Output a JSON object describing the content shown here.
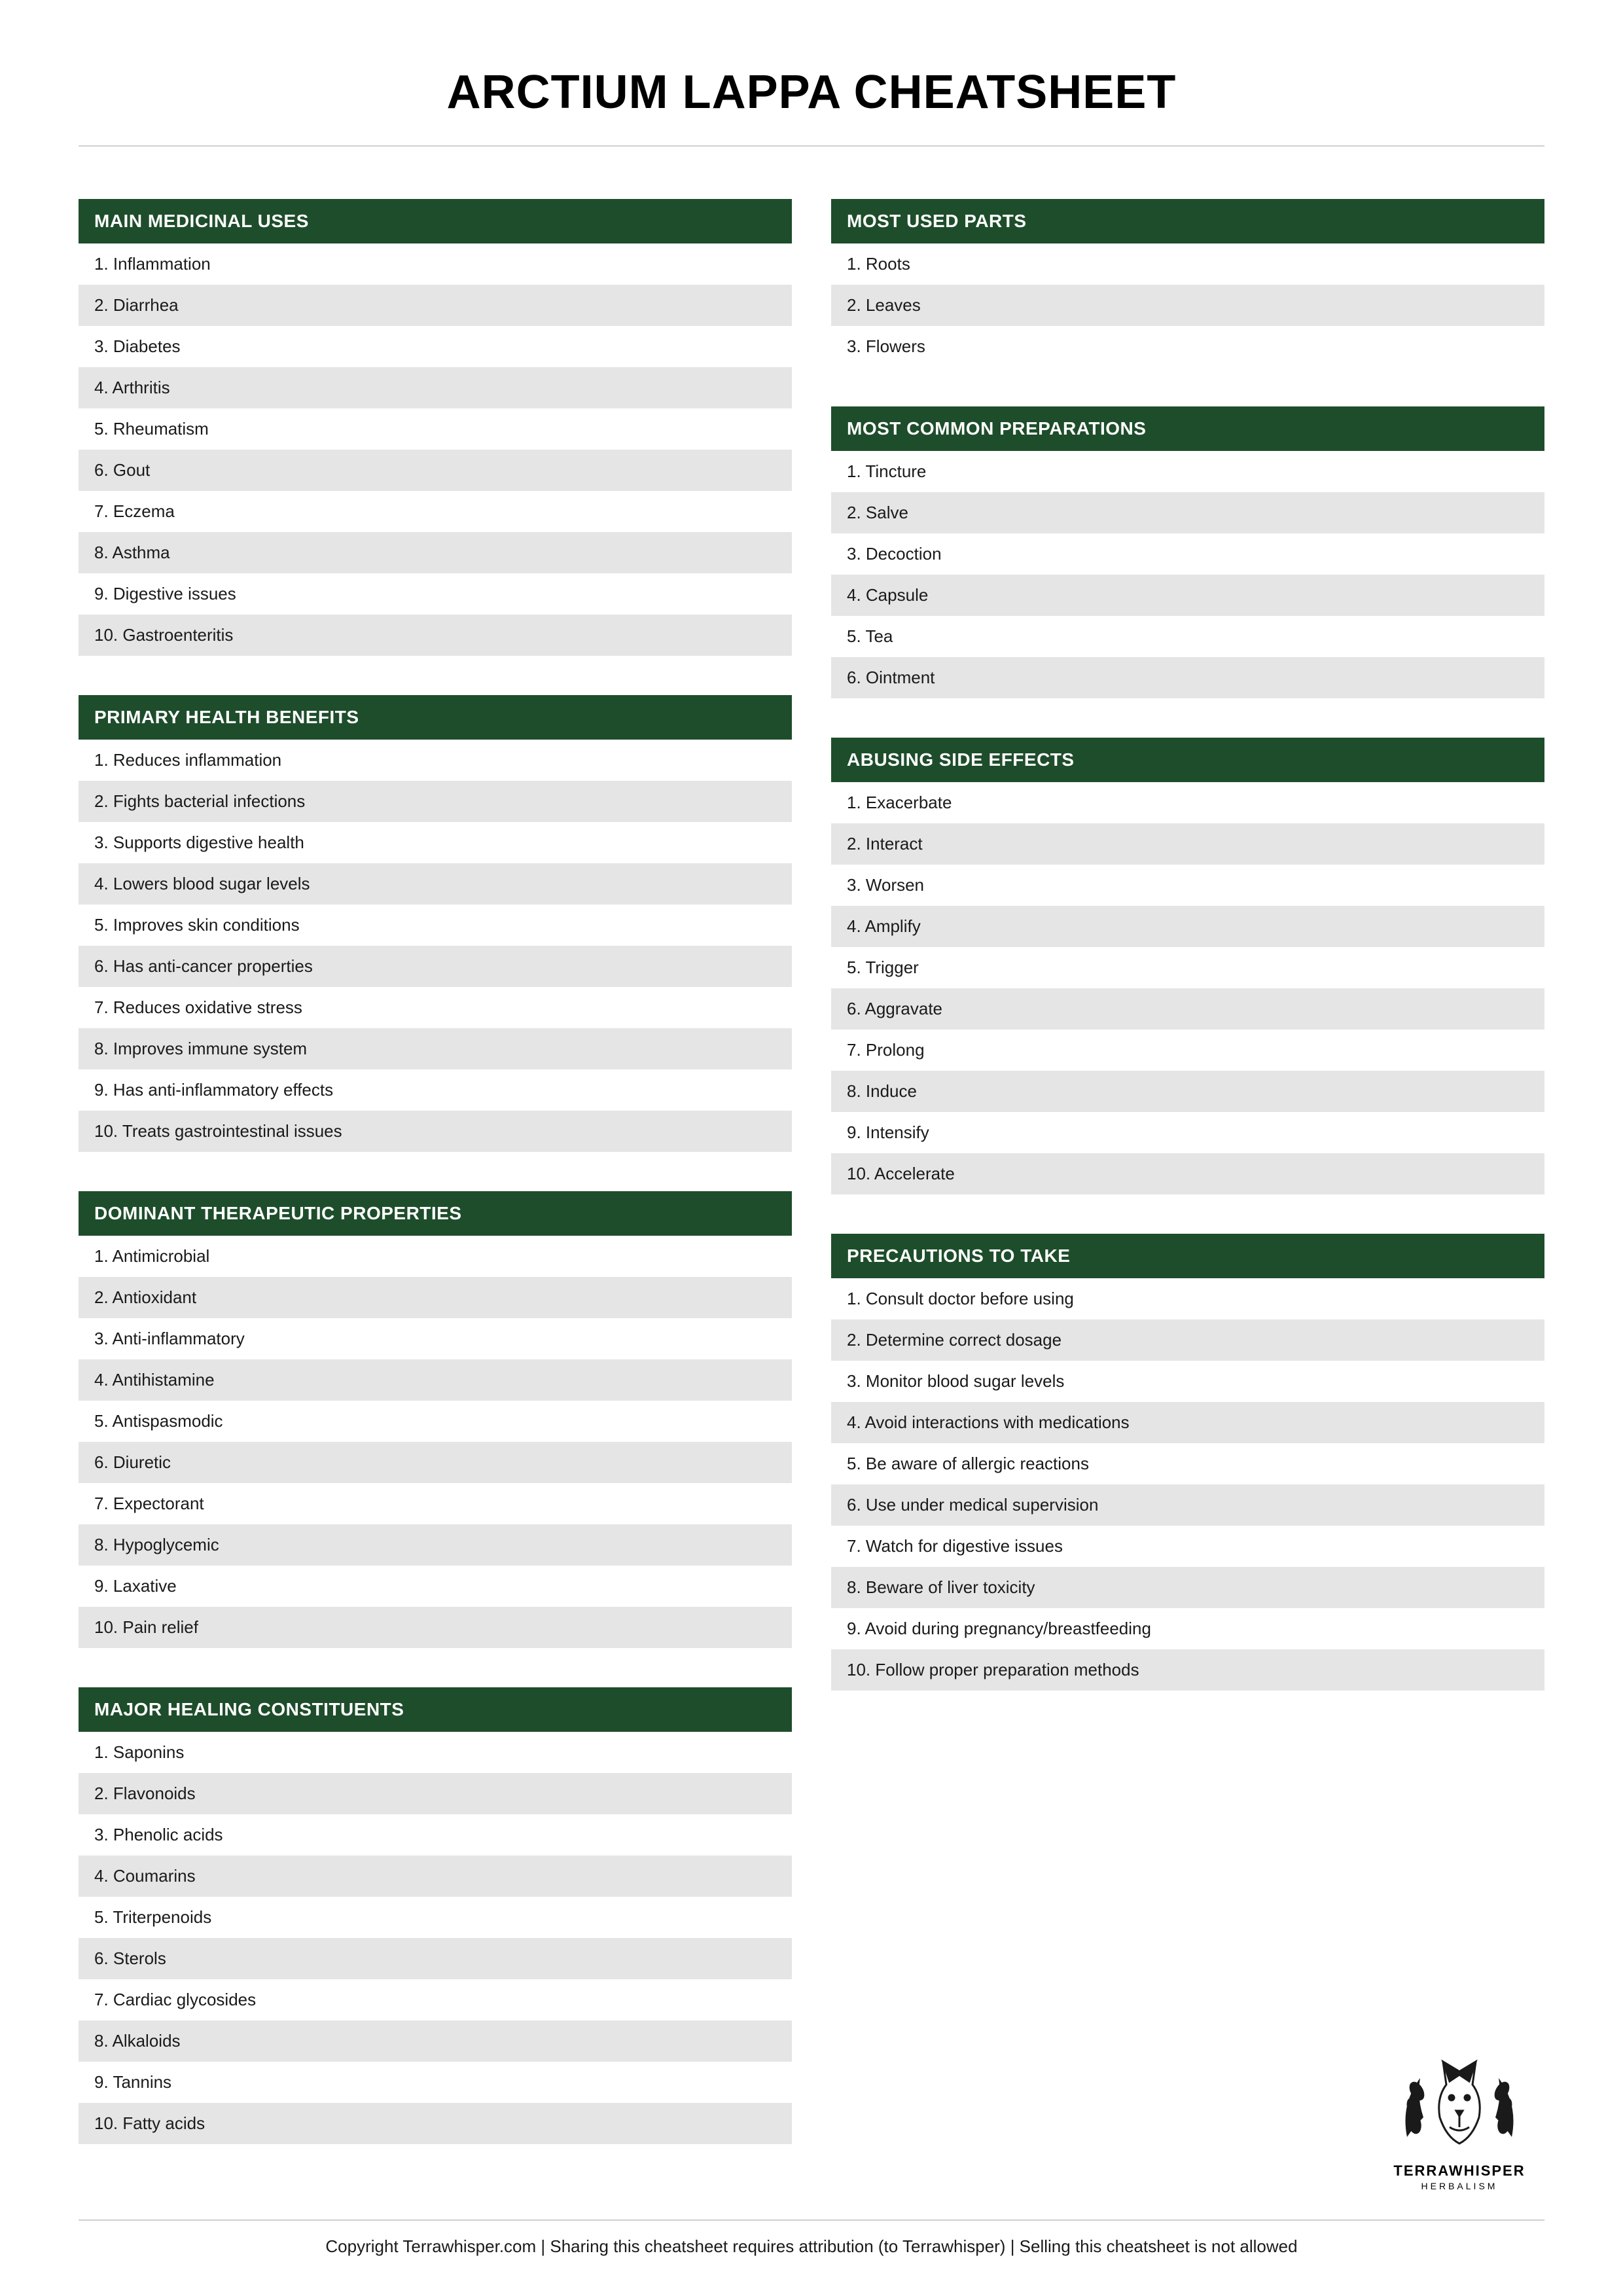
{
  "title": "ARCTIUM LAPPA CHEATSHEET",
  "colors": {
    "header_bg": "#1e4d2b",
    "header_text": "#ffffff",
    "row_odd_bg": "#ffffff",
    "row_even_bg": "#e5e5e5",
    "text": "#1a1a1a",
    "divider": "#d0d0d0"
  },
  "left_sections": [
    {
      "title": "MAIN MEDICINAL USES",
      "items": [
        "1. Inflammation",
        "2. Diarrhea",
        "3. Diabetes",
        "4. Arthritis",
        "5. Rheumatism",
        "6. Gout",
        "7. Eczema",
        "8. Asthma",
        "9. Digestive issues",
        "10. Gastroenteritis"
      ]
    },
    {
      "title": "PRIMARY HEALTH BENEFITS",
      "items": [
        "1. Reduces inflammation",
        "2. Fights bacterial infections",
        "3. Supports digestive health",
        "4. Lowers blood sugar levels",
        "5. Improves skin conditions",
        "6. Has anti-cancer properties",
        "7. Reduces oxidative stress",
        "8. Improves immune system",
        "9. Has anti-inflammatory effects",
        "10. Treats gastrointestinal issues"
      ]
    },
    {
      "title": "DOMINANT THERAPEUTIC PROPERTIES",
      "items": [
        "1. Antimicrobial",
        "2. Antioxidant",
        "3. Anti-inflammatory",
        "4. Antihistamine",
        "5. Antispasmodic",
        "6. Diuretic",
        "7. Expectorant",
        "8. Hypoglycemic",
        "9. Laxative",
        "10. Pain relief"
      ]
    },
    {
      "title": "MAJOR HEALING CONSTITUENTS",
      "items": [
        "1. Saponins",
        "2. Flavonoids",
        "3. Phenolic acids",
        "4. Coumarins",
        "5. Triterpenoids",
        "6. Sterols",
        "7. Cardiac glycosides",
        "8. Alkaloids",
        "9. Tannins",
        "10. Fatty acids"
      ]
    }
  ],
  "right_sections": [
    {
      "title": "MOST USED PARTS",
      "items": [
        "1. Roots",
        "2. Leaves",
        "3. Flowers"
      ]
    },
    {
      "title": "MOST COMMON PREPARATIONS",
      "items": [
        "1. Tincture",
        "2. Salve",
        "3. Decoction",
        "4. Capsule",
        "5. Tea",
        "6. Ointment"
      ]
    },
    {
      "title": "ABUSING SIDE EFFECTS",
      "items": [
        "1. Exacerbate",
        "2. Interact",
        "3. Worsen",
        "4. Amplify",
        "5. Trigger",
        "6. Aggravate",
        "7. Prolong",
        "8. Induce",
        "9. Intensify",
        "10. Accelerate"
      ]
    },
    {
      "title": "PRECAUTIONS TO TAKE",
      "items": [
        "1. Consult doctor before using",
        "2. Determine correct dosage",
        "3. Monitor blood sugar levels",
        "4. Avoid interactions with medications",
        "5. Be aware of allergic reactions",
        "6. Use under medical supervision",
        "7. Watch for digestive issues",
        "8. Beware of liver toxicity",
        "9. Avoid during pregnancy/breastfeeding",
        "10. Follow proper preparation methods"
      ]
    }
  ],
  "logo": {
    "brand": "TERRAWHISPER",
    "tagline": "HERBALISM"
  },
  "footer": "Copyright Terrawhisper.com | Sharing this cheatsheet requires attribution (to Terrawhisper) | Selling this cheatsheet is not allowed"
}
